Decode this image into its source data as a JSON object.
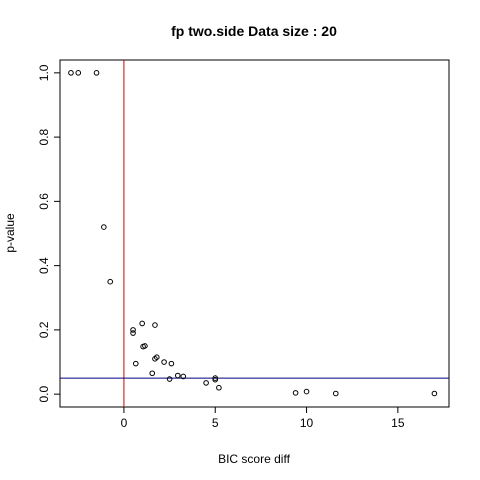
{
  "chart_data": {
    "type": "scatter",
    "title": "fp two.side Data size :  20",
    "xlabel": "BIC score diff",
    "ylabel": "p-value",
    "xlim": [
      -3.5,
      17.8
    ],
    "ylim": [
      -0.04,
      1.04
    ],
    "xticks": [
      0,
      5,
      10,
      15
    ],
    "yticks": [
      0.0,
      0.2,
      0.4,
      0.6,
      0.8,
      1.0
    ],
    "xtick_labels": [
      "0",
      "5",
      "10",
      "15"
    ],
    "ytick_labels": [
      "0.0",
      "0.2",
      "0.4",
      "0.6",
      "0.8",
      "1.0"
    ],
    "grid": false,
    "points": [
      {
        "x": -2.9,
        "y": 1.0
      },
      {
        "x": -2.5,
        "y": 1.0
      },
      {
        "x": -1.5,
        "y": 1.0
      },
      {
        "x": -1.1,
        "y": 0.52
      },
      {
        "x": -0.75,
        "y": 0.35
      },
      {
        "x": 0.5,
        "y": 0.2
      },
      {
        "x": 0.5,
        "y": 0.19
      },
      {
        "x": 1.0,
        "y": 0.22
      },
      {
        "x": 1.7,
        "y": 0.215
      },
      {
        "x": 1.05,
        "y": 0.148
      },
      {
        "x": 1.15,
        "y": 0.15
      },
      {
        "x": 1.7,
        "y": 0.11
      },
      {
        "x": 1.8,
        "y": 0.115
      },
      {
        "x": 2.2,
        "y": 0.1
      },
      {
        "x": 0.65,
        "y": 0.095
      },
      {
        "x": 2.6,
        "y": 0.095
      },
      {
        "x": 1.55,
        "y": 0.065
      },
      {
        "x": 2.95,
        "y": 0.058
      },
      {
        "x": 3.25,
        "y": 0.055
      },
      {
        "x": 2.5,
        "y": 0.047
      },
      {
        "x": 4.5,
        "y": 0.035
      },
      {
        "x": 5.0,
        "y": 0.05
      },
      {
        "x": 5.0,
        "y": 0.045
      },
      {
        "x": 5.2,
        "y": 0.02
      },
      {
        "x": 9.4,
        "y": 0.004
      },
      {
        "x": 10.0,
        "y": 0.008
      },
      {
        "x": 11.6,
        "y": 0.002
      },
      {
        "x": 17.0,
        "y": 0.002
      }
    ],
    "reference_lines": [
      {
        "orientation": "vertical",
        "value": 0,
        "color": "#cc0000"
      },
      {
        "orientation": "horizontal",
        "value": 0.05,
        "color": "#000080"
      }
    ]
  }
}
